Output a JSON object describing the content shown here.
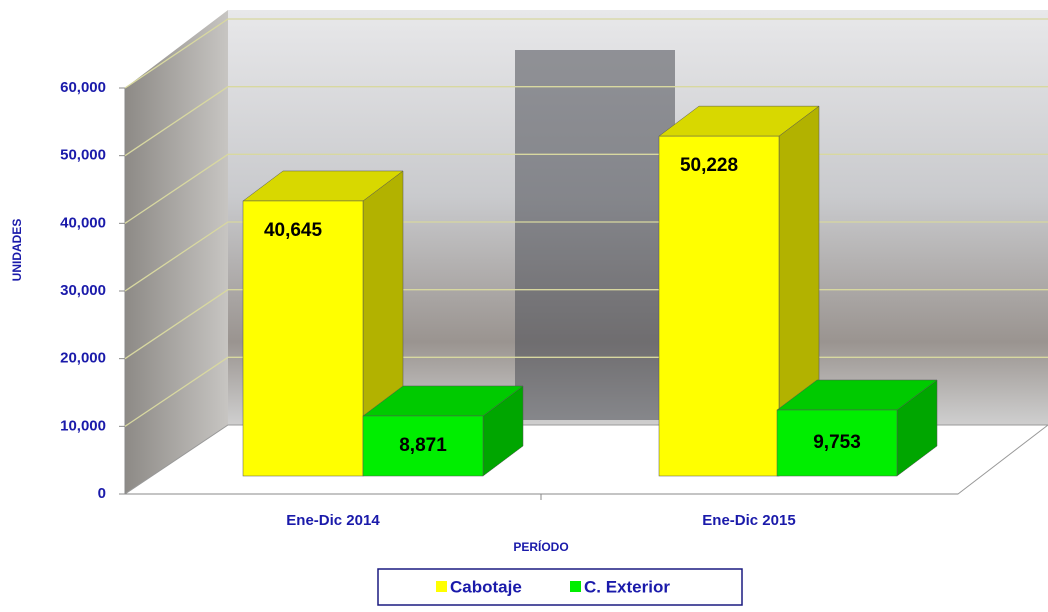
{
  "chart_data": {
    "type": "bar3d",
    "y_label": "UNIDADES",
    "x_label": "PERÍODO",
    "categories": [
      "Ene-Dic 2014",
      "Ene-Dic 2015"
    ],
    "series": [
      {
        "name": "Cabotaje",
        "color": "#ffff00",
        "values": [
          40645,
          50228
        ],
        "value_labels": [
          "40,645",
          "50,228"
        ]
      },
      {
        "name": "C. Exterior",
        "color": "#00ee00",
        "values": [
          8871,
          9753
        ],
        "value_labels": [
          "8,871",
          "9,753"
        ]
      }
    ],
    "ylim": [
      0,
      60000
    ],
    "yticks": [
      {
        "value": 0,
        "label": "0"
      },
      {
        "value": 10000,
        "label": "10,000"
      },
      {
        "value": 20000,
        "label": "20,000"
      },
      {
        "value": 30000,
        "label": "30,000"
      },
      {
        "value": 40000,
        "label": "40,000"
      },
      {
        "value": 50000,
        "label": "50,000"
      },
      {
        "value": 60000,
        "label": "60,000"
      }
    ],
    "grid": true,
    "legend": "bottom"
  }
}
